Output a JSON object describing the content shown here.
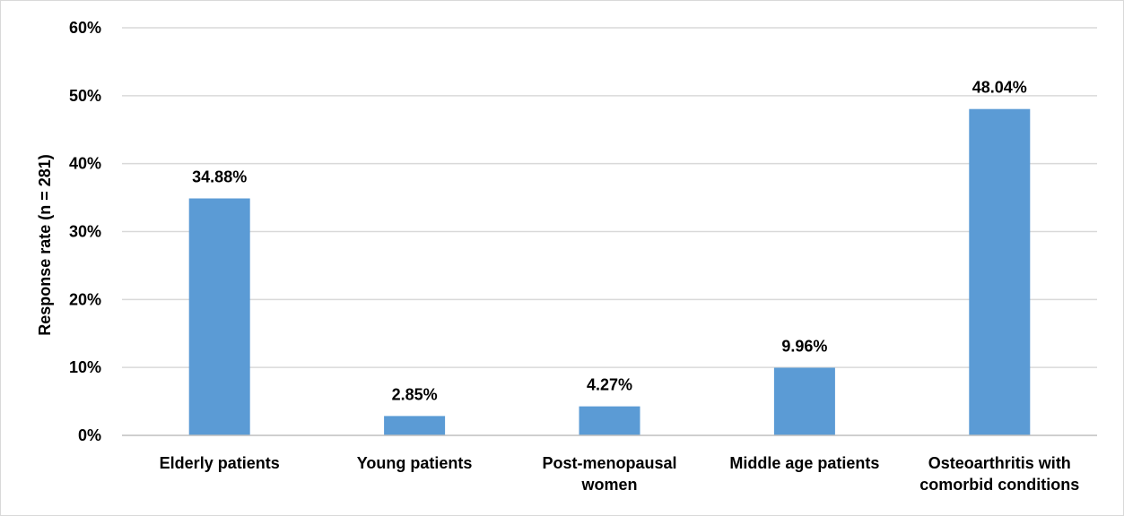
{
  "chart_data": {
    "type": "bar",
    "title": "",
    "xlabel": "",
    "ylabel": "Response rate (n = 281)",
    "categories": [
      [
        "Elderly patients"
      ],
      [
        "Young patients"
      ],
      [
        "Post-menopausal",
        "women"
      ],
      [
        "Middle age patients"
      ],
      [
        "Osteoarthritis with",
        "comorbid conditions"
      ]
    ],
    "values": [
      34.88,
      2.85,
      4.27,
      9.96,
      48.04
    ],
    "data_labels": [
      "34.88%",
      "2.85%",
      "4.27%",
      "9.96%",
      "48.04%"
    ],
    "ylim": [
      0,
      60
    ],
    "y_ticks": [
      0,
      10,
      20,
      30,
      40,
      50,
      60
    ],
    "y_tick_labels": [
      "0%",
      "10%",
      "20%",
      "30%",
      "40%",
      "50%",
      "60%"
    ],
    "grid": true,
    "legend": "none",
    "bar_color": "#5b9bd5",
    "grid_color": "#d9d9d9",
    "axis_color": "#bfbfbf"
  }
}
